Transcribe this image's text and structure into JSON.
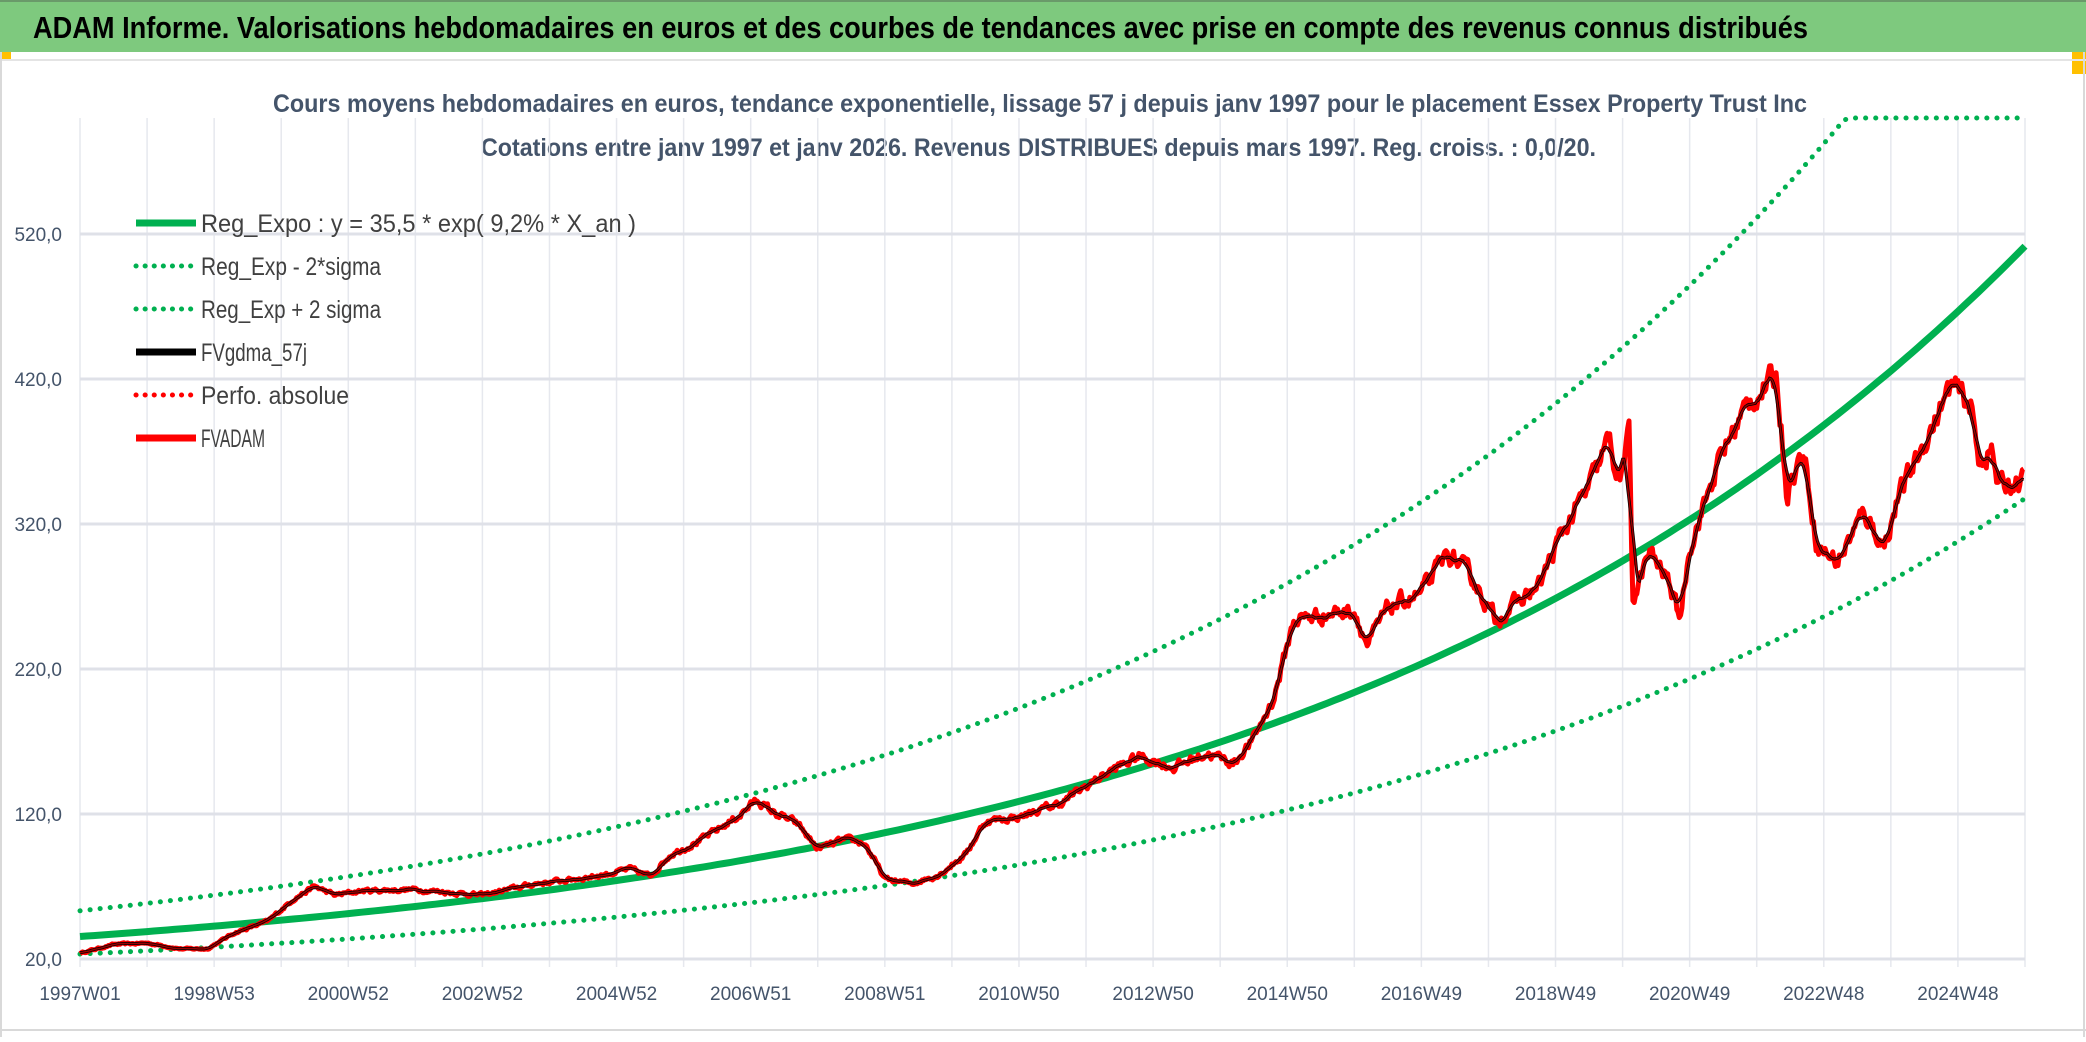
{
  "header": {
    "title": "ADAM Informe. Valorisations hebdomadaires en euros et des courbes de tendances avec prise en compte des revenus connus distribués",
    "background": "#7ec97e"
  },
  "chart_data": {
    "type": "line",
    "title": "Cours moyens hebdomadaires en euros, tendance exponentielle, lissage 57 j depuis janv 1997 pour le placement Essex Property Trust Inc",
    "subtitle": "Cotations entre janv 1997 et janv 2026. Revenus DISTRIBUES depuis mars 1997. Reg. croiss. : 0,0/20.",
    "xlabel": "",
    "ylabel": "",
    "x_unit": "years since 1997W01",
    "xlim": [
      0,
      29
    ],
    "ylim": [
      20,
      600
    ],
    "y_ticks": [
      20,
      120,
      220,
      320,
      420,
      520
    ],
    "y_tick_labels": [
      "20,0",
      "120,0",
      "220,0",
      "320,0",
      "420,0",
      "520,0"
    ],
    "x_tick_labels": [
      "1997W01",
      "1998W53",
      "2000W52",
      "2002W52",
      "2004W52",
      "2006W51",
      "2008W51",
      "2010W50",
      "2012W50",
      "2014W50",
      "2016W49",
      "2018W49",
      "2020W49",
      "2022W48",
      "2024W48"
    ],
    "grid": true,
    "legend_position": "top-left",
    "trend": {
      "a": 35.5,
      "rate": 0.092,
      "lower_factor": 0.66,
      "upper_factor": 1.5
    },
    "legend": [
      {
        "label": "Reg_Expo : y = 35,5 * exp( 9,2% *  X_an )",
        "color": "#00b050",
        "style": "solid"
      },
      {
        "label": "Reg_Exp - 2*sigma",
        "color": "#00b050",
        "style": "dotted"
      },
      {
        "label": "Reg_Exp + 2 sigma",
        "color": "#00b050",
        "style": "dotted"
      },
      {
        "label": "FVgdma_57j",
        "color": "#000000",
        "style": "solid"
      },
      {
        "label": "Perfo. absolue",
        "color": "#ff0000",
        "style": "dotted"
      },
      {
        "label": "FVADAM",
        "color": "#ff0000",
        "style": "solid"
      }
    ],
    "fvadam_points": [
      [
        0,
        24
      ],
      [
        0.5,
        30
      ],
      [
        1,
        31
      ],
      [
        1.5,
        27
      ],
      [
        1.9,
        27
      ],
      [
        2.3,
        38
      ],
      [
        2.8,
        46
      ],
      [
        3.2,
        62
      ],
      [
        3.5,
        70
      ],
      [
        3.8,
        64
      ],
      [
        4.2,
        67
      ],
      [
        5,
        68
      ],
      [
        5.5,
        66
      ],
      [
        6,
        64
      ],
      [
        6.8,
        72
      ],
      [
        7.2,
        74
      ],
      [
        7.8,
        78
      ],
      [
        8.2,
        82
      ],
      [
        8.5,
        77
      ],
      [
        8.8,
        92
      ],
      [
        9.3,
        103
      ],
      [
        9.8,
        118
      ],
      [
        10.1,
        130
      ],
      [
        10.3,
        122
      ],
      [
        10.7,
        113
      ],
      [
        11.0,
        96
      ],
      [
        11.4,
        102
      ],
      [
        11.7,
        100
      ],
      [
        12.0,
        75
      ],
      [
        12.4,
        72
      ],
      [
        12.8,
        78
      ],
      [
        13.2,
        92
      ],
      [
        13.5,
        115
      ],
      [
        14,
        118
      ],
      [
        14.6,
        127
      ],
      [
        15.3,
        148
      ],
      [
        15.8,
        160
      ],
      [
        16.3,
        152
      ],
      [
        16.8,
        162
      ],
      [
        17.2,
        155
      ],
      [
        17.5,
        172
      ],
      [
        17.8,
        200
      ],
      [
        18.1,
        254
      ],
      [
        18.6,
        258
      ],
      [
        19.0,
        261
      ],
      [
        19.2,
        236
      ],
      [
        19.5,
        262
      ],
      [
        20.0,
        272
      ],
      [
        20.4,
        300
      ],
      [
        20.8,
        280
      ],
      [
        21.1,
        254
      ],
      [
        21.75,
        277
      ],
      [
        22.1,
        314
      ],
      [
        22.5,
        345
      ],
      [
        22.8,
        378
      ],
      [
        22.95,
        348
      ],
      [
        23.1,
        381
      ],
      [
        23.15,
        268
      ],
      [
        23.4,
        300
      ],
      [
        23.7,
        280
      ],
      [
        23.85,
        254
      ],
      [
        24.0,
        305
      ],
      [
        24.5,
        371
      ],
      [
        24.9,
        405
      ],
      [
        25.3,
        421
      ],
      [
        25.45,
        343
      ],
      [
        25.7,
        371
      ],
      [
        25.9,
        305
      ],
      [
        26.2,
        294
      ],
      [
        26.6,
        328
      ],
      [
        26.9,
        305
      ],
      [
        27.1,
        337
      ],
      [
        27.5,
        376
      ],
      [
        27.9,
        415
      ],
      [
        28.2,
        401
      ],
      [
        28.3,
        364
      ],
      [
        28.5,
        371
      ],
      [
        28.6,
        346
      ],
      [
        29.0,
        350
      ]
    ]
  }
}
